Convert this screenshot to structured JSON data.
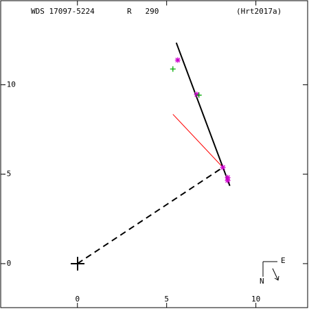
{
  "chart_data": {
    "type": "scatter",
    "title": "WDS 17097-5224",
    "annotations": [
      "R   290",
      "(Hrt2017a)"
    ],
    "compass": {
      "east": "E",
      "north": "N"
    },
    "xlim": [
      -4.3,
      12.9
    ],
    "xticks": [
      0,
      5,
      10
    ],
    "ylim": [
      2.46,
      -14.7
    ],
    "yticks": [
      -10,
      -5,
      {
        "value": 0,
        "label": "-0"
      }
    ],
    "series": [
      {
        "color": "#000000",
        "mode": "line",
        "style": "solid",
        "x": [
          5.54,
          8.54
        ],
        "values": [
          -12.35,
          -4.35
        ]
      },
      {
        "color": "#000000",
        "mode": "line",
        "style": "dashed",
        "x": [
          0,
          8.15
        ],
        "values": [
          0,
          -5.38
        ]
      },
      {
        "color": "#ff0000",
        "mode": "line",
        "style": "thin",
        "x": [
          5.35,
          8.15
        ],
        "values": [
          -8.35,
          -5.38
        ]
      },
      {
        "color": "#cc00cc",
        "mode": "marker",
        "marker": "asterisk",
        "x": [
          5.62,
          6.69,
          8.15,
          8.42,
          8.42
        ],
        "values": [
          -11.38,
          -9.46,
          -5.38,
          -4.81,
          -4.65
        ]
      },
      {
        "color": "#00aa00",
        "mode": "marker",
        "marker": "plus",
        "x": [
          5.35,
          6.81
        ],
        "values": [
          -10.88,
          -9.42
        ]
      }
    ]
  }
}
